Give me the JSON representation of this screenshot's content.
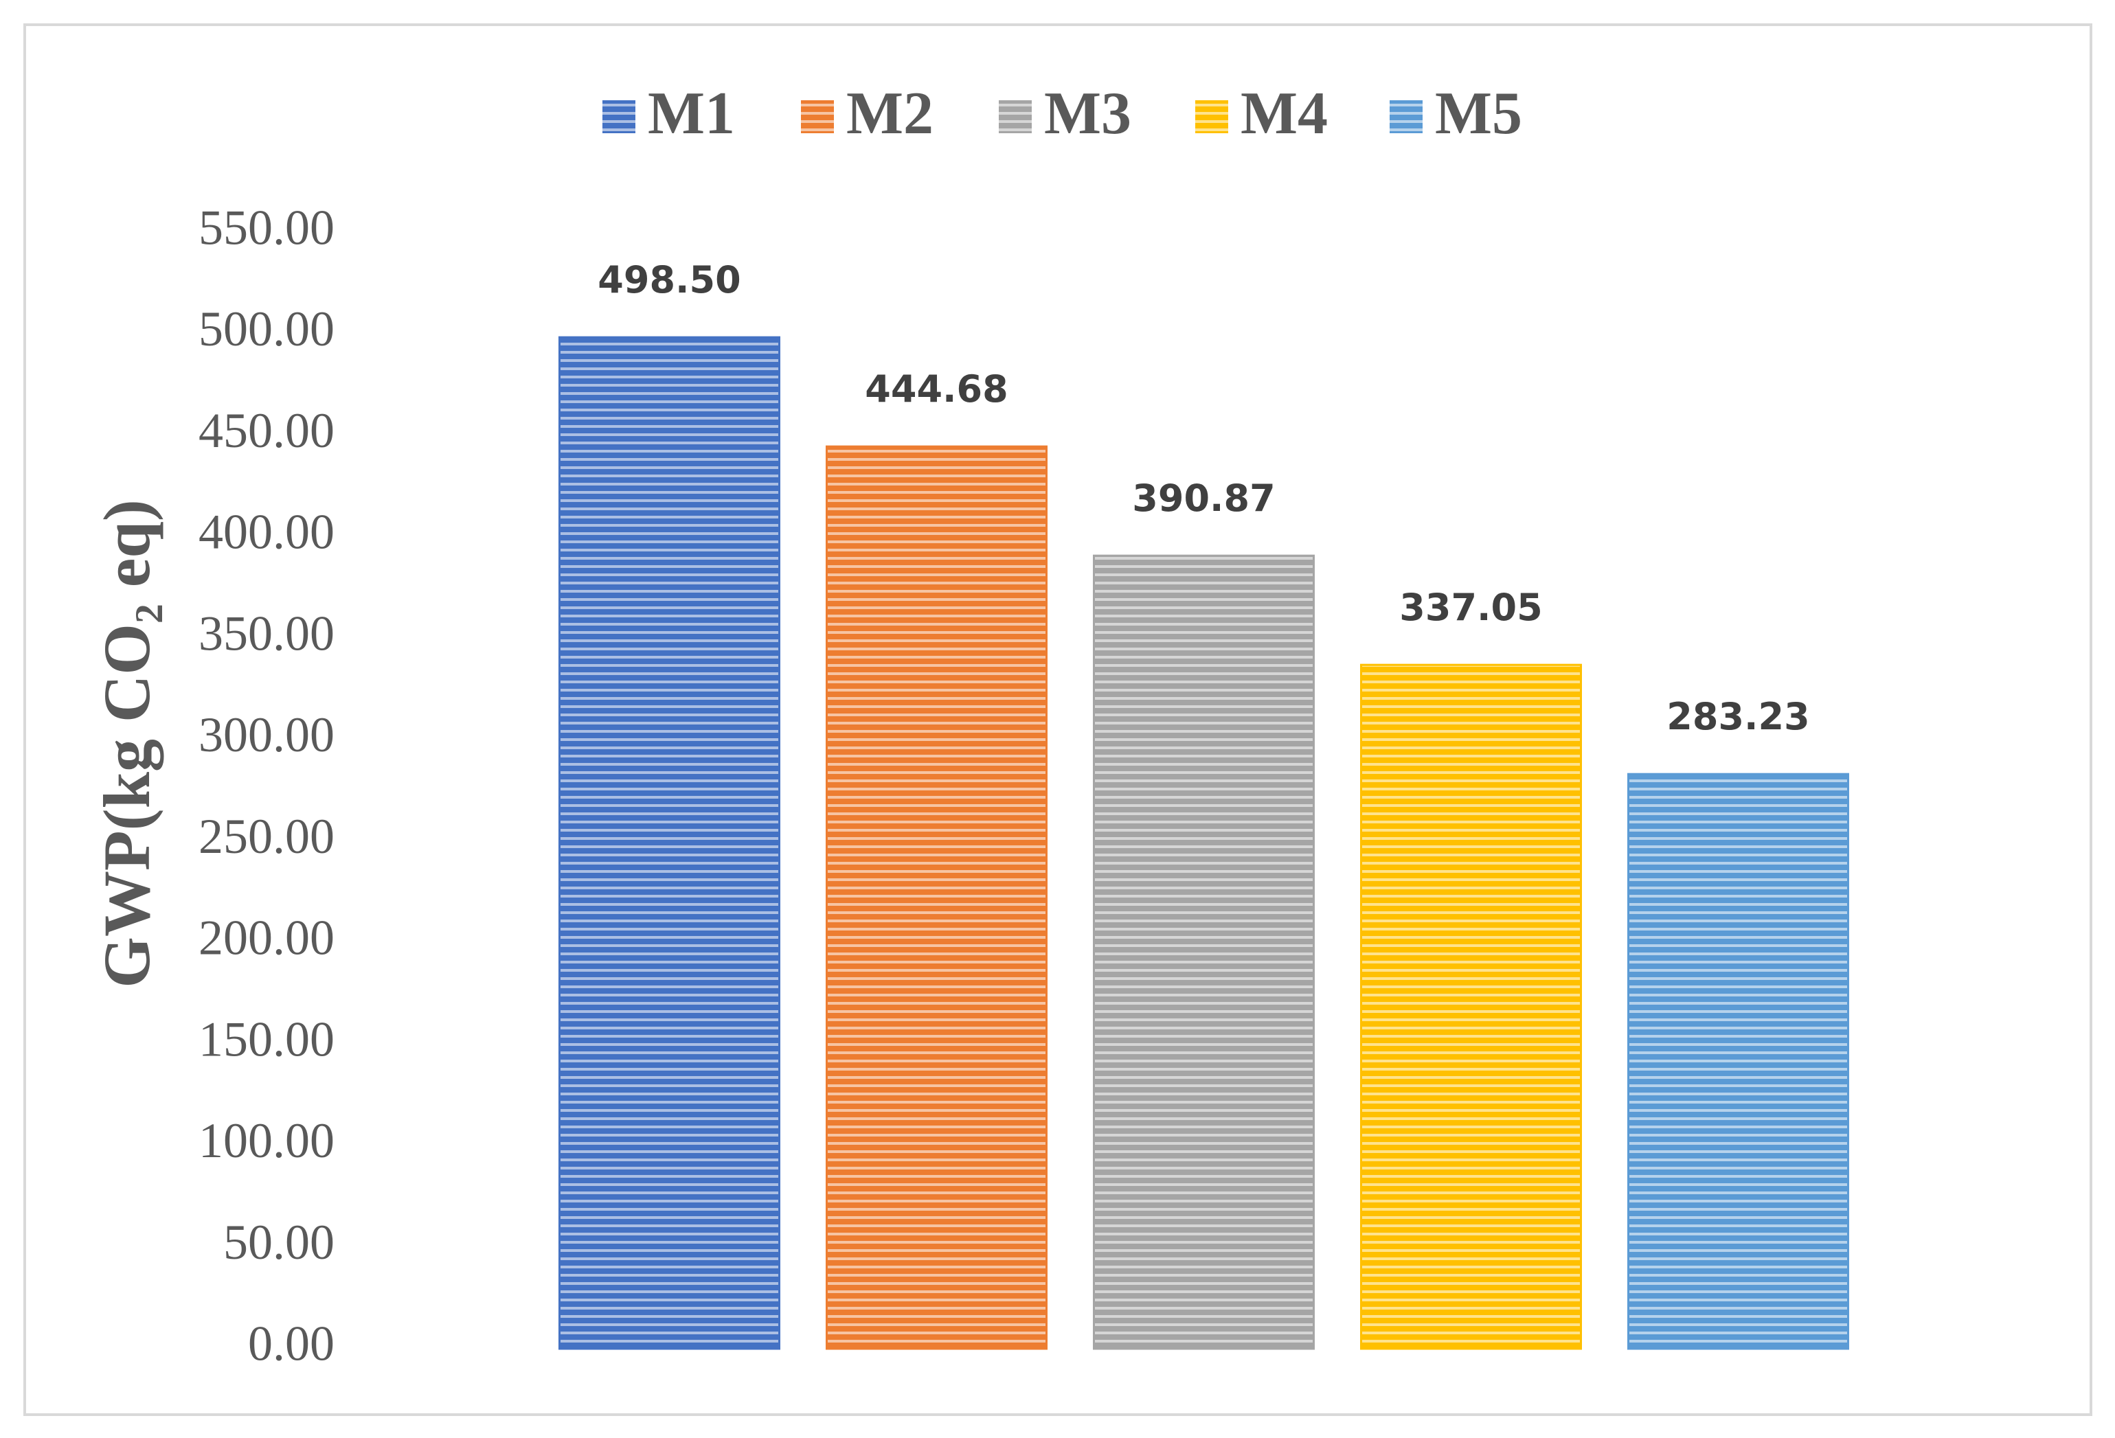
{
  "chart_data": {
    "type": "bar",
    "y_label": "GWP(kg CO₂ eq)",
    "categories": [
      null
    ],
    "series": [
      {
        "name": "M1",
        "color": "#4472c4",
        "values": [
          498.5
        ],
        "value_labels": [
          "498.50"
        ]
      },
      {
        "name": "M2",
        "color": "#ed7d31",
        "values": [
          444.68
        ],
        "value_labels": [
          "444.68"
        ]
      },
      {
        "name": "M3",
        "color": "#a5a5a5",
        "values": [
          390.87
        ],
        "value_labels": [
          "390.87"
        ]
      },
      {
        "name": "M4",
        "color": "#ffc000",
        "values": [
          337.05
        ],
        "value_labels": [
          "337.05"
        ]
      },
      {
        "name": "M5",
        "color": "#5b9bd5",
        "values": [
          283.23
        ],
        "value_labels": [
          "283.23"
        ]
      }
    ],
    "ylim": [
      0,
      550
    ],
    "yticks": [
      {
        "value": 0,
        "label": "0.00"
      },
      {
        "value": 50,
        "label": "50.00"
      },
      {
        "value": 100,
        "label": "100.00"
      },
      {
        "value": 150,
        "label": "150.00"
      },
      {
        "value": 200,
        "label": "200.00"
      },
      {
        "value": 250,
        "label": "250.00"
      },
      {
        "value": 300,
        "label": "300.00"
      },
      {
        "value": 350,
        "label": "350.00"
      },
      {
        "value": 400,
        "label": "400.00"
      },
      {
        "value": 450,
        "label": "450.00"
      },
      {
        "value": 500,
        "label": "500.00"
      },
      {
        "value": 550,
        "label": "550.00"
      }
    ],
    "grid": false,
    "legend": "top"
  }
}
